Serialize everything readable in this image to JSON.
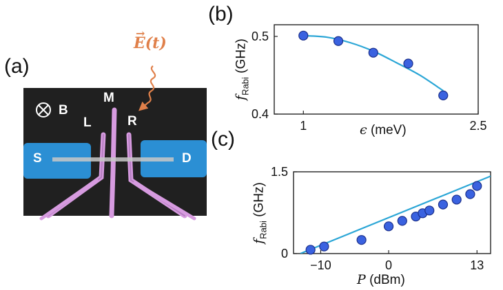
{
  "figure": {
    "panel_a": {
      "label": "(a)",
      "field_label": "E(t)",
      "terminals": {
        "m": "M",
        "l": "L",
        "r": "R",
        "s": "S",
        "d": "D",
        "b": "B"
      },
      "colors": {
        "background": "#202020",
        "contact": "#2b8fd4",
        "gate": "#d79be0",
        "arrow": "#e0804a",
        "channel": "#c8c8c8"
      }
    },
    "panel_b": {
      "label": "(b)",
      "ylabel_main": "f",
      "ylabel_sub": "Rabi",
      "ylabel_unit": "(GHz)",
      "xlabel_sym": "ϵ",
      "xlabel_unit": "(meV)",
      "ytick_labels": [
        "0.4",
        "0.5"
      ],
      "xtick_labels": [
        "1",
        "2.5"
      ]
    },
    "panel_c": {
      "label": "(c)",
      "ylabel_main": "f",
      "ylabel_sub": "Rabi",
      "ylabel_unit": "(GHz)",
      "xlabel_sym": "P",
      "xlabel_unit": "(dBm)",
      "ytick_labels": [
        "0",
        "1.5"
      ],
      "xtick_labels": [
        "−10",
        "0",
        "13"
      ]
    }
  },
  "chart_data": [
    {
      "panel": "b",
      "type": "scatter",
      "xlim": [
        0.75,
        2.5
      ],
      "ylim": [
        0.4,
        0.515
      ],
      "xticks": [
        1,
        2.5
      ],
      "yticks": [
        0.4,
        0.5
      ],
      "series": [
        {
          "kind": "points",
          "x": [
            1.0,
            1.3,
            1.6,
            1.9,
            2.2
          ],
          "y": [
            0.501,
            0.494,
            0.479,
            0.465,
            0.424
          ],
          "yerr": [
            0.004,
            0.003,
            0.003,
            0.004,
            0.003
          ],
          "color": "#3a62e0"
        },
        {
          "kind": "fit",
          "x": [
            1.0,
            1.2,
            1.4,
            1.6,
            1.8,
            2.0,
            2.2
          ],
          "y": [
            0.501,
            0.499,
            0.492,
            0.481,
            0.466,
            0.45,
            0.43
          ],
          "color": "#2ba6d6"
        }
      ],
      "grid": false
    },
    {
      "panel": "c",
      "type": "scatter",
      "xlim": [
        -14,
        15
      ],
      "ylim": [
        0,
        1.5
      ],
      "xticks": [
        -10,
        0,
        13
      ],
      "yticks": [
        0,
        1.5
      ],
      "series": [
        {
          "kind": "points",
          "x": [
            -11.5,
            -9.5,
            -4,
            0,
            2,
            4,
            5,
            6,
            8,
            10,
            12,
            13
          ],
          "y": [
            0.07,
            0.13,
            0.25,
            0.5,
            0.6,
            0.68,
            0.74,
            0.79,
            0.9,
            0.99,
            1.09,
            1.24
          ],
          "color": "#3a62e0"
        },
        {
          "kind": "fit",
          "x": [
            -13,
            15
          ],
          "y": [
            0.0,
            1.42
          ],
          "color": "#2ba6d6"
        }
      ],
      "grid": false
    }
  ]
}
